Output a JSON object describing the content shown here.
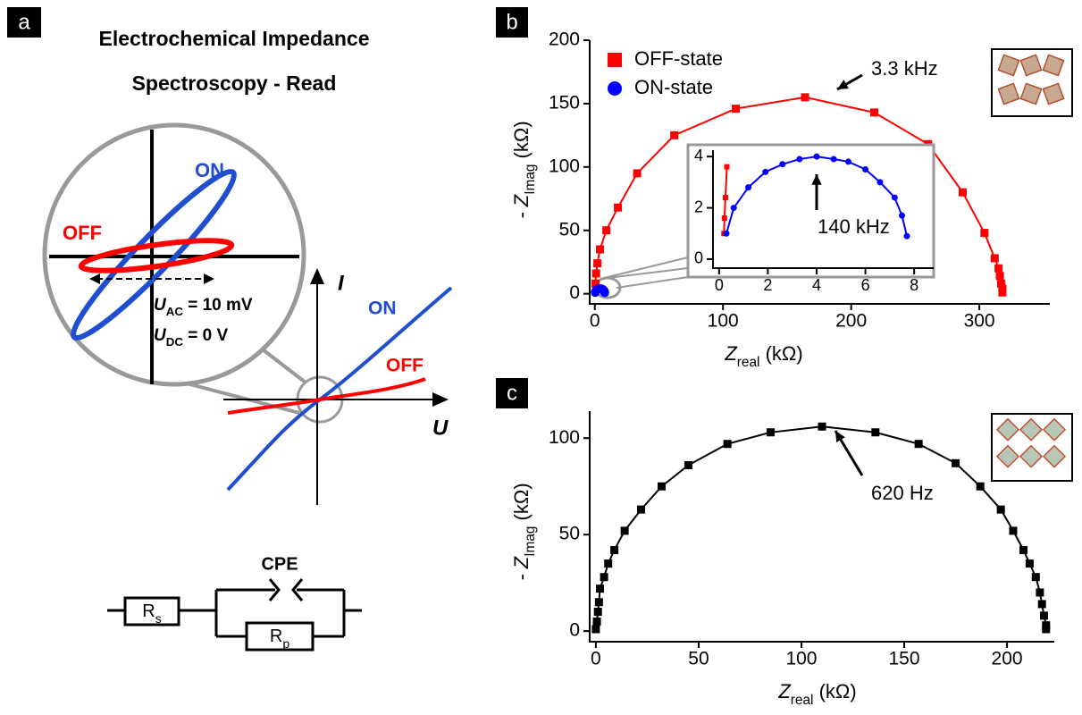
{
  "panel_a": {
    "label": "a",
    "title_lines": [
      "Electrochemical Impedance",
      "Spectroscopy - Read"
    ],
    "zoom_on": "ON",
    "zoom_off": "OFF",
    "u_ac": [
      "U",
      "AC",
      " = 10 mV"
    ],
    "u_dc": [
      "U",
      "DC",
      " = 0 V"
    ],
    "axis_i": "I",
    "axis_u": "U",
    "curve_on": "ON",
    "curve_off": "OFF",
    "cpe": "CPE",
    "rs": [
      "R",
      "s"
    ],
    "rp": [
      "R",
      "p"
    ]
  },
  "chart_data": [
    {
      "type": "scatter",
      "panel_label": "b",
      "xlabel": [
        "Z",
        "real",
        " (kΩ)"
      ],
      "ylabel": [
        "- Z",
        "Imag",
        " (kΩ)"
      ],
      "xlim": [
        -4,
        355
      ],
      "ylim": [
        -8,
        200
      ],
      "xticks": [
        0,
        100,
        200,
        300
      ],
      "yticks": [
        0,
        50,
        100,
        150,
        200
      ],
      "legend": "upper left",
      "annotation": "3.3 kHz",
      "series": [
        {
          "name": "OFF-state",
          "color": "#ff0000",
          "marker": "square",
          "x": [
            0.5,
            1,
            2,
            4,
            9,
            18,
            33,
            62,
            110,
            164,
            218,
            260,
            287,
            304,
            312,
            315,
            316,
            317,
            318,
            318
          ],
          "values": [
            8,
            16,
            24,
            35,
            50,
            68,
            95,
            125,
            146,
            155,
            143,
            118,
            80,
            48,
            28,
            20,
            14,
            8,
            4,
            1
          ]
        },
        {
          "name": "ON-state",
          "color": "#0000ff",
          "marker": "circle",
          "x": [
            0.3,
            0.6,
            1.2,
            1.9,
            2.6,
            3.3,
            4,
            4.7,
            5.3,
            6,
            6.6,
            7.2,
            7.5,
            7.7
          ],
          "values": [
            1,
            2,
            2.8,
            3.4,
            3.7,
            3.9,
            4,
            3.9,
            3.8,
            3.5,
            3,
            2.4,
            1.7,
            0.9
          ]
        }
      ]
    },
    {
      "type": "scatter",
      "xlim": [
        -0.25,
        8.8
      ],
      "ylim": [
        -0.35,
        4.25
      ],
      "xticks": [
        0,
        2,
        4,
        6,
        8
      ],
      "yticks": [
        0,
        2,
        4
      ],
      "annotation": "140 kHz",
      "series": [
        {
          "color": "#ff0000",
          "marker": "square",
          "x": [
            0.2,
            0.22,
            0.26,
            0.32
          ],
          "values": [
            1,
            1.6,
            2.4,
            3.6
          ]
        },
        {
          "color": "#0000ff",
          "marker": "circle",
          "x": [
            0.3,
            0.6,
            1.2,
            1.9,
            2.6,
            3.3,
            4,
            4.7,
            5.3,
            6,
            6.6,
            7.2,
            7.5,
            7.7
          ],
          "values": [
            1,
            2,
            2.8,
            3.4,
            3.7,
            3.9,
            4,
            3.9,
            3.8,
            3.5,
            3,
            2.4,
            1.7,
            0.9
          ]
        }
      ]
    },
    {
      "type": "scatter",
      "panel_label": "c",
      "xlabel": [
        "Z",
        "real",
        " (kΩ)"
      ],
      "ylabel": [
        "- Z",
        "Imag",
        " (kΩ)"
      ],
      "xlim": [
        -3,
        223
      ],
      "ylim": [
        -5.5,
        114
      ],
      "xticks": [
        0,
        50,
        100,
        150,
        200
      ],
      "yticks": [
        0,
        50,
        100
      ],
      "annotation": "620 Hz",
      "series": [
        {
          "color": "#000000",
          "marker": "square",
          "x": [
            0,
            0.5,
            1,
            1.5,
            2,
            4,
            6,
            9,
            14,
            22,
            32,
            45,
            64,
            85,
            110,
            136,
            157,
            175,
            187,
            197,
            203,
            208,
            211,
            214,
            216,
            217,
            218,
            219,
            219
          ],
          "values": [
            1,
            5,
            10,
            15,
            22,
            28,
            35,
            42,
            52,
            63,
            75,
            86,
            97,
            103,
            106,
            103,
            97,
            87,
            75,
            63,
            52,
            42,
            35,
            28,
            20,
            14,
            8,
            3,
            1
          ]
        }
      ]
    }
  ]
}
